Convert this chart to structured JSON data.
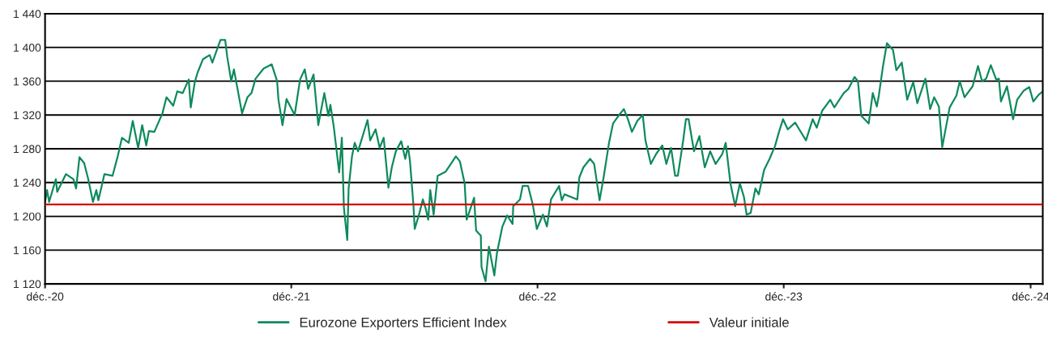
{
  "chart_data": {
    "type": "line",
    "x": [
      "2020-12-01",
      "2020-12-04",
      "2020-12-07",
      "2020-12-17",
      "2020-12-19",
      "2021-01-01",
      "2021-01-12",
      "2021-01-16",
      "2021-01-21",
      "2021-01-28",
      "2021-02-03",
      "2021-02-10",
      "2021-02-15",
      "2021-02-18",
      "2021-02-23",
      "2021-02-27",
      "2021-03-11",
      "2021-03-19",
      "2021-03-25",
      "2021-04-04",
      "2021-04-10",
      "2021-04-18",
      "2021-04-24",
      "2021-04-30",
      "2021-05-04",
      "2021-05-12",
      "2021-05-24",
      "2021-05-30",
      "2021-06-09",
      "2021-06-15",
      "2021-06-23",
      "2021-07-02",
      "2021-07-05",
      "2021-07-11",
      "2021-07-15",
      "2021-07-23",
      "2021-08-02",
      "2021-08-06",
      "2021-08-18",
      "2021-08-25",
      "2021-08-28",
      "2021-09-03",
      "2021-09-07",
      "2021-09-19",
      "2021-09-27",
      "2021-10-03",
      "2021-10-09",
      "2021-10-21",
      "2021-11-02",
      "2021-11-10",
      "2021-11-12",
      "2021-11-18",
      "2021-11-24",
      "2021-12-06",
      "2021-12-14",
      "2021-12-21",
      "2021-12-26",
      "2022-01-03",
      "2022-01-10",
      "2022-01-19",
      "2022-01-25",
      "2022-01-28",
      "2022-02-02",
      "2022-02-10",
      "2022-02-14",
      "2022-02-17",
      "2022-02-22",
      "2022-02-24",
      "2022-03-01",
      "2022-03-05",
      "2022-03-10",
      "2022-03-24",
      "2022-03-28",
      "2022-04-05",
      "2022-04-11",
      "2022-04-17",
      "2022-04-24",
      "2022-04-29",
      "2022-05-05",
      "2022-05-13",
      "2022-05-19",
      "2022-05-23",
      "2022-05-26",
      "2022-05-31",
      "2022-06-02",
      "2022-06-09",
      "2022-06-14",
      "2022-06-18",
      "2022-06-22",
      "2022-06-25",
      "2022-06-30",
      "2022-07-06",
      "2022-07-18",
      "2022-08-02",
      "2022-08-08",
      "2022-08-15",
      "2022-08-18",
      "2022-08-29",
      "2022-09-01",
      "2022-09-08",
      "2022-09-09",
      "2022-09-15",
      "2022-09-20",
      "2022-09-28",
      "2022-10-02",
      "2022-10-10",
      "2022-10-17",
      "2022-10-25",
      "2022-10-26",
      "2022-11-05",
      "2022-11-09",
      "2022-11-17",
      "2022-11-24",
      "2022-11-30",
      "2022-12-09",
      "2022-12-15",
      "2022-12-21",
      "2023-01-02",
      "2023-01-06",
      "2023-01-10",
      "2023-01-29",
      "2023-02-01",
      "2023-02-07",
      "2023-02-17",
      "2023-02-23",
      "2023-03-03",
      "2023-03-09",
      "2023-03-17",
      "2023-03-23",
      "2023-03-31",
      "2023-04-08",
      "2023-04-14",
      "2023-04-20",
      "2023-04-28",
      "2023-05-06",
      "2023-05-10",
      "2023-05-18",
      "2023-05-26",
      "2023-06-04",
      "2023-06-10",
      "2023-06-17",
      "2023-06-23",
      "2023-06-27",
      "2023-07-05",
      "2023-07-09",
      "2023-07-13",
      "2023-07-21",
      "2023-07-29",
      "2023-08-06",
      "2023-08-14",
      "2023-08-22",
      "2023-09-01",
      "2023-09-06",
      "2023-09-13",
      "2023-09-20",
      "2023-09-27",
      "2023-10-03",
      "2023-10-07",
      "2023-10-13",
      "2023-10-20",
      "2023-10-25",
      "2023-11-02",
      "2023-11-10",
      "2023-11-18",
      "2023-11-24",
      "2023-11-30",
      "2023-12-07",
      "2023-12-18",
      "2023-12-24",
      "2024-01-03",
      "2024-01-13",
      "2024-01-19",
      "2024-01-27",
      "2024-02-08",
      "2024-02-14",
      "2024-02-28",
      "2024-03-06",
      "2024-03-15",
      "2024-03-20",
      "2024-03-25",
      "2024-04-05",
      "2024-04-11",
      "2024-04-17",
      "2024-04-20",
      "2024-04-26",
      "2024-05-02",
      "2024-05-11",
      "2024-05-16",
      "2024-05-24",
      "2024-06-01",
      "2024-06-10",
      "2024-06-16",
      "2024-06-28",
      "2024-07-05",
      "2024-07-11",
      "2024-07-18",
      "2024-07-23",
      "2024-08-03",
      "2024-08-13",
      "2024-08-18",
      "2024-08-25",
      "2024-09-06",
      "2024-09-14",
      "2024-09-20",
      "2024-09-26",
      "2024-10-03",
      "2024-10-11",
      "2024-10-15",
      "2024-10-18",
      "2024-10-27",
      "2024-11-05",
      "2024-11-11",
      "2024-11-21",
      "2024-11-29",
      "2024-12-05",
      "2024-12-13",
      "2024-12-19"
    ],
    "series": [
      {
        "name": "Eurozone Exporters Efficient Index",
        "color": "#0e8a5c",
        "values": [
          1217,
          1231,
          1217,
          1244,
          1229,
          1250,
          1244,
          1233,
          1270,
          1263,
          1244,
          1217,
          1231,
          1219,
          1236,
          1250,
          1248,
          1272,
          1293,
          1287,
          1313,
          1281,
          1308,
          1284,
          1301,
          1300,
          1322,
          1341,
          1331,
          1348,
          1346,
          1362,
          1329,
          1359,
          1370,
          1386,
          1391,
          1382,
          1409,
          1409,
          1389,
          1360,
          1374,
          1322,
          1341,
          1346,
          1363,
          1375,
          1380,
          1360,
          1338,
          1308,
          1339,
          1320,
          1362,
          1374,
          1351,
          1368,
          1308,
          1346,
          1319,
          1332,
          1306,
          1252,
          1293,
          1210,
          1172,
          1233,
          1271,
          1287,
          1277,
          1314,
          1290,
          1303,
          1281,
          1293,
          1234,
          1258,
          1277,
          1289,
          1268,
          1283,
          1265,
          1214,
          1185,
          1204,
          1220,
          1210,
          1196,
          1231,
          1202,
          1248,
          1253,
          1271,
          1265,
          1239,
          1196,
          1222,
          1183,
          1177,
          1140,
          1123,
          1164,
          1130,
          1157,
          1188,
          1201,
          1191,
          1212,
          1220,
          1236,
          1236,
          1214,
          1185,
          1202,
          1188,
          1220,
          1236,
          1219,
          1226,
          1220,
          1246,
          1258,
          1268,
          1262,
          1219,
          1246,
          1287,
          1310,
          1319,
          1327,
          1315,
          1300,
          1313,
          1320,
          1290,
          1262,
          1274,
          1284,
          1262,
          1281,
          1248,
          1248,
          1290,
          1315,
          1315,
          1277,
          1295,
          1258,
          1277,
          1262,
          1274,
          1287,
          1239,
          1212,
          1239,
          1223,
          1202,
          1204,
          1233,
          1226,
          1255,
          1268,
          1283,
          1300,
          1315,
          1303,
          1311,
          1303,
          1290,
          1315,
          1305,
          1325,
          1338,
          1329,
          1346,
          1351,
          1365,
          1360,
          1319,
          1310,
          1346,
          1330,
          1343,
          1377,
          1405,
          1397,
          1373,
          1382,
          1338,
          1359,
          1334,
          1363,
          1327,
          1341,
          1330,
          1282,
          1329,
          1343,
          1360,
          1341,
          1354,
          1378,
          1360,
          1363,
          1379,
          1362,
          1363,
          1336,
          1354,
          1315,
          1338,
          1349,
          1353,
          1336,
          1344,
          1348
        ]
      }
    ],
    "ref_lines": [
      {
        "axis": "y",
        "value": 1214,
        "label": "Valeur initiale",
        "color": "#d40000"
      }
    ],
    "xlim": [
      "2020-12-01",
      "2024-12-19"
    ],
    "xticks": [
      {
        "value": "2020-12-01",
        "label": "déc.-20"
      },
      {
        "value": "2021-12-01",
        "label": "déc.-21"
      },
      {
        "value": "2022-12-01",
        "label": "déc.-22"
      },
      {
        "value": "2023-12-01",
        "label": "déc.-23"
      },
      {
        "value": "2024-12-01",
        "label": "déc.-24"
      }
    ],
    "ylim": [
      1120,
      1440
    ],
    "yticks": [
      {
        "value": 1120,
        "label": "1 120"
      },
      {
        "value": 1160,
        "label": "1 160"
      },
      {
        "value": 1200,
        "label": "1 200"
      },
      {
        "value": 1240,
        "label": "1 240"
      },
      {
        "value": 1280,
        "label": "1 280"
      },
      {
        "value": 1320,
        "label": "1 320"
      },
      {
        "value": 1360,
        "label": "1 360"
      },
      {
        "value": 1400,
        "label": "1 400"
      },
      {
        "value": 1440,
        "label": "1 440"
      }
    ],
    "grid": "y",
    "legend": "bottom"
  }
}
